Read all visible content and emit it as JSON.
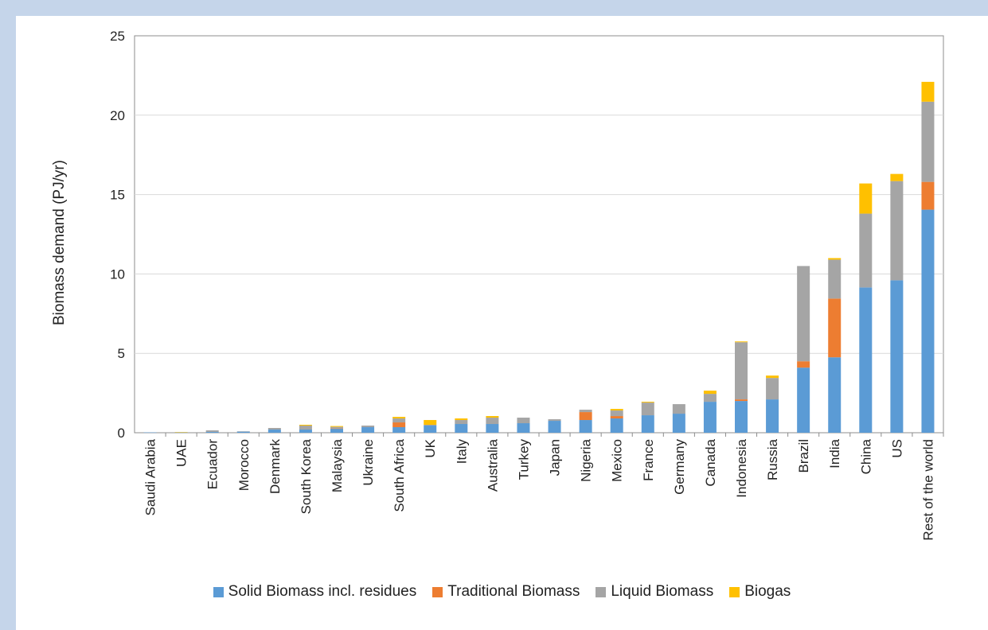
{
  "chart_data": {
    "type": "bar",
    "stacked": true,
    "title": "",
    "xlabel": "",
    "ylabel": "Biomass demand (PJ/yr)",
    "ylim": [
      0,
      25
    ],
    "yticks": [
      0,
      5,
      10,
      15,
      20,
      25
    ],
    "grid": true,
    "legend_position": "bottom",
    "categories": [
      "Saudi Arabia",
      "UAE",
      "Ecuador",
      "Morocco",
      "Denmark",
      "South Korea",
      "Malaysia",
      "Ukraine",
      "South Africa",
      "UK",
      "Italy",
      "Australia",
      "Turkey",
      "Japan",
      "Nigeria",
      "Mexico",
      "France",
      "Germany",
      "Canada",
      "Indonesia",
      "Russia",
      "Brazil",
      "India",
      "China",
      "US",
      "Rest of the world"
    ],
    "series": [
      {
        "name": "Solid Biomass incl. residues",
        "color": "#5b9bd5",
        "values": [
          0.02,
          0.02,
          0.05,
          0.07,
          0.2,
          0.2,
          0.25,
          0.35,
          0.35,
          0.45,
          0.55,
          0.55,
          0.6,
          0.75,
          0.8,
          0.9,
          1.1,
          1.2,
          1.95,
          2.0,
          2.1,
          4.1,
          4.75,
          9.15,
          9.6,
          14.05
        ]
      },
      {
        "name": "Traditional Biomass",
        "color": "#ed7d31",
        "values": [
          0,
          0,
          0,
          0,
          0,
          0,
          0.02,
          0,
          0.3,
          0,
          0,
          0,
          0,
          0,
          0.5,
          0.15,
          0,
          0,
          0,
          0.1,
          0,
          0.4,
          3.7,
          0,
          0,
          1.75
        ]
      },
      {
        "name": "Liquid Biomass",
        "color": "#a5a5a5",
        "values": [
          0,
          0,
          0.1,
          0.02,
          0.1,
          0.25,
          0.1,
          0.1,
          0.25,
          0.05,
          0.25,
          0.4,
          0.35,
          0.1,
          0.15,
          0.35,
          0.8,
          0.6,
          0.5,
          3.6,
          1.35,
          6.0,
          2.45,
          4.65,
          6.25,
          5.05
        ]
      },
      {
        "name": "Biogas",
        "color": "#ffc000",
        "values": [
          0,
          0.02,
          0,
          0,
          0,
          0.05,
          0.05,
          0,
          0.1,
          0.3,
          0.1,
          0.1,
          0,
          0,
          0,
          0.1,
          0.05,
          0,
          0.2,
          0.05,
          0.15,
          0,
          0.1,
          1.9,
          0.45,
          1.25
        ]
      }
    ]
  }
}
